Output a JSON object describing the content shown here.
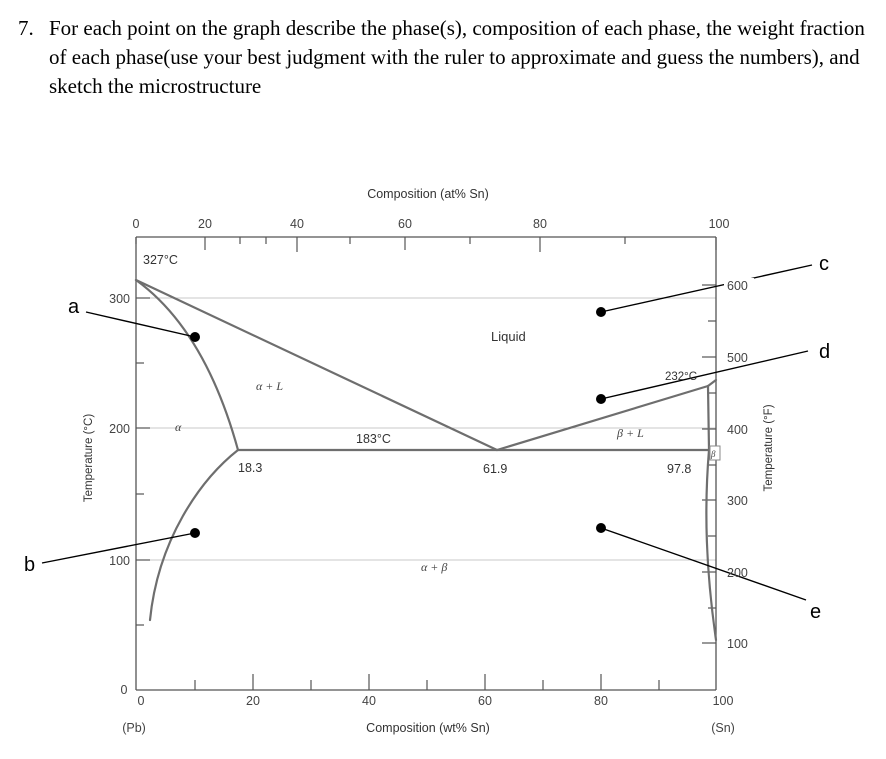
{
  "question": {
    "number": "7.",
    "text": "For each point on the graph describe the phase(s), composition of each phase, the weight fraction of each phase(use your best judgment with the ruler to approximate and guess the numbers), and sketch the microstructure"
  },
  "diagram": {
    "top_axis_title": "Composition (at% Sn)",
    "top_ticks": [
      "0",
      "20",
      "40",
      "60",
      "80",
      "100"
    ],
    "bottom_axis_title": "Composition (wt% Sn)",
    "bottom_ticks": [
      "0",
      "20",
      "40",
      "60",
      "80",
      "100"
    ],
    "bottom_origin": "0",
    "left_end_label": "(Pb)",
    "right_end_label": "(Sn)",
    "left_axis_title": "Temperature (°C)",
    "left_ticks": [
      "300",
      "200",
      "100"
    ],
    "right_axis_title": "Temperature (°F)",
    "right_ticks": [
      "600",
      "500",
      "400",
      "300",
      "200",
      "100"
    ],
    "melt_pb": "327°C",
    "melt_sn": "232°C",
    "eutectic_temp": "183°C",
    "comp_alpha": "18.3",
    "comp_eutectic": "61.9",
    "comp_beta": "97.8",
    "region_liquid": "Liquid",
    "region_alpha_l": "α + L",
    "region_beta_l": "β + L",
    "region_alpha_beta": "α + β",
    "region_alpha": "α",
    "region_beta": "β"
  },
  "point_labels": {
    "a": "a",
    "b": "b",
    "c": "c",
    "d": "d",
    "e": "e"
  },
  "colors": {
    "curve": "#6e6e6e",
    "axis": "#444444",
    "grid": "#c8c8c8",
    "marker": "#000000"
  }
}
